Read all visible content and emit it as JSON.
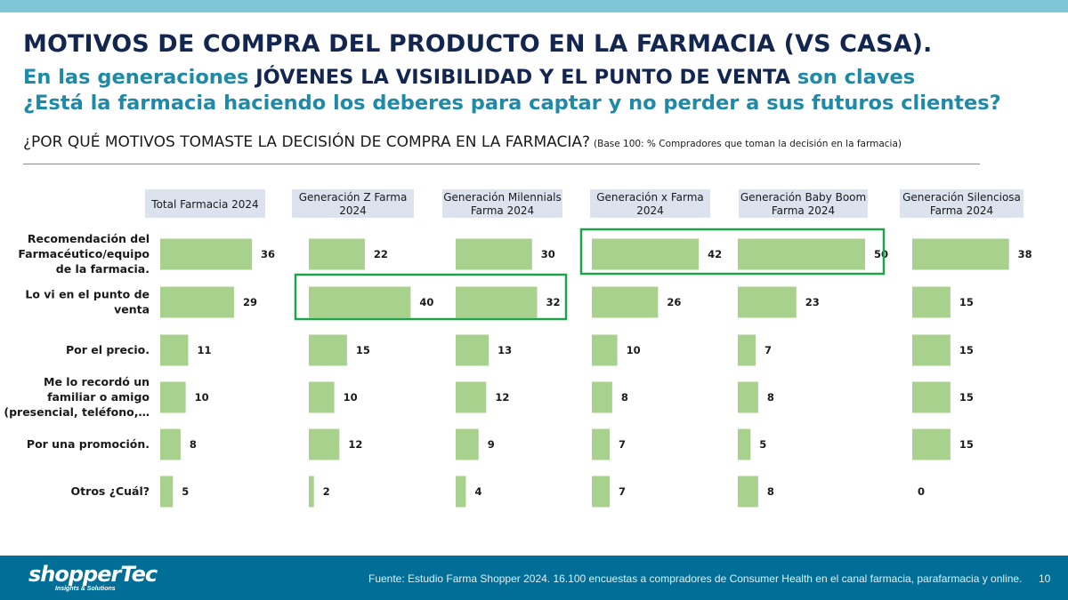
{
  "header": {
    "title": "MOTIVOS DE COMPRA DEL PRODUCTO EN LA FARMACIA (VS CASA).",
    "subtitle_part1": "En las generaciones ",
    "subtitle_part2": "JÓVENES LA VISIBILIDAD Y EL PUNTO DE VENTA",
    "subtitle_part3": " son claves",
    "subtitle2": "¿Está la farmacia haciendo los deberes para captar y no perder a sus futuros clientes?",
    "question": "¿POR QUÉ MOTIVOS TOMASTE LA DECISIÓN DE COMPRA EN LA FARMACIA?",
    "base_note": "(Base 100: % Compradores que toman la decisión en la farmacia)"
  },
  "colors": {
    "bar": "#a9d18e",
    "panel_header_bg": "#dde3ee",
    "highlight_border": "#1fa34a",
    "title": "#12264f",
    "accent": "#1f8aa8",
    "footer_bg": "#006e97",
    "top_bar": "#7fc6d8"
  },
  "chart_data": {
    "type": "bar",
    "orientation": "horizontal",
    "categories": [
      [
        "Recomendación del",
        "Farmacéutico/equipo",
        "de la farmacia."
      ],
      [
        "Lo vi en el punto de",
        "venta"
      ],
      [
        "Por el precio."
      ],
      [
        "Me lo recordó un",
        "familiar o amigo",
        "(presencial, teléfono,…"
      ],
      [
        "Por una promoción."
      ],
      [
        "Otros ¿Cuál?"
      ]
    ],
    "series": [
      {
        "name": "Total Farmacia 2024",
        "values": [
          36,
          29,
          11,
          10,
          8,
          5
        ]
      },
      {
        "name": "Generación Z Farma 2024",
        "values": [
          22,
          40,
          15,
          10,
          12,
          2
        ]
      },
      {
        "name": "Generación Milennials Farma 2024",
        "values": [
          30,
          32,
          13,
          12,
          9,
          4
        ]
      },
      {
        "name": "Generación x Farma 2024",
        "values": [
          42,
          26,
          10,
          8,
          7,
          7
        ]
      },
      {
        "name": "Generación Baby Boom Farma 2024",
        "values": [
          50,
          23,
          7,
          8,
          5,
          8
        ]
      },
      {
        "name": "Generación Silenciosa Farma 2024",
        "values": [
          38,
          15,
          15,
          15,
          15,
          0
        ]
      }
    ],
    "panel_headers": [
      [
        "Total Farmacia 2024"
      ],
      [
        "Generación Z Farma",
        "2024"
      ],
      [
        "Generación Milennials",
        "Farma 2024"
      ],
      [
        "Generación x Farma",
        "2024"
      ],
      [
        "Generación Baby Boom",
        "Farma 2024"
      ],
      [
        "Generación Silenciosa",
        "Farma 2024"
      ]
    ],
    "highlights": [
      {
        "series": [
          1,
          2
        ],
        "category": 1
      },
      {
        "series": [
          3,
          4
        ],
        "category": 0
      }
    ],
    "xlim": [
      0,
      50
    ],
    "grid": false,
    "legend": "none"
  },
  "footer": {
    "logo_main": "shopperTec",
    "logo_sub": "Insights & Solutions",
    "source": "Fuente: Estudio Farma Shopper 2024. 16.100 encuestas a compradores de Consumer Health en el canal farmacia, parafarmacia y online.",
    "page_number": "10"
  }
}
